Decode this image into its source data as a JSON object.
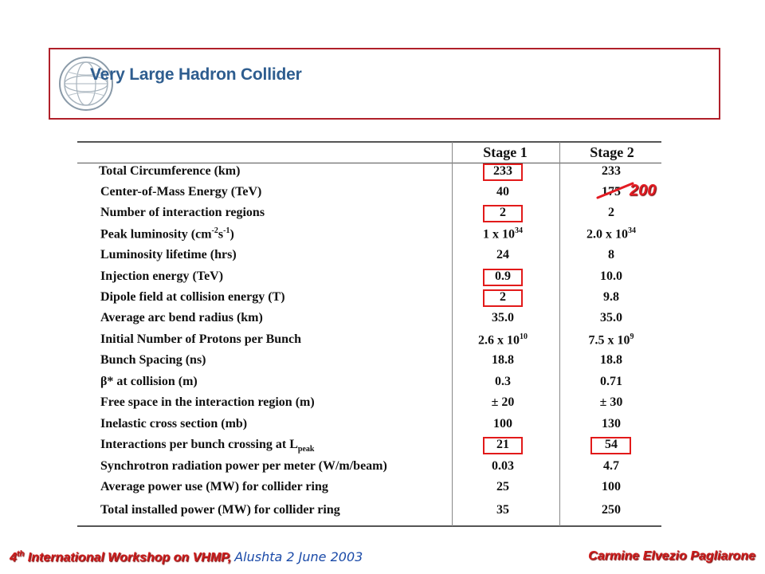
{
  "header": {
    "title": "Very Large Hadron Collider",
    "logo_icon": "globe-icon"
  },
  "table": {
    "col_stage1": "Stage 1",
    "col_stage2": "Stage 2",
    "rows": [
      {
        "param": "Total Circumference (km)",
        "s1": "233",
        "s2": "233"
      },
      {
        "param": "Center-of-Mass Energy (TeV)",
        "s1": "40",
        "s2": "175"
      },
      {
        "param": "Number of interaction regions",
        "s1": "2",
        "s2": "2"
      },
      {
        "param_pre": "Peak luminosity (cm",
        "param_sup1": "-2",
        "param_mid": "s",
        "param_sup2": "-1",
        "param_post": ")",
        "s1_pre": "1 x 10",
        "s1_sup": "34",
        "s2_pre": "2.0 x 10",
        "s2_sup": "34"
      },
      {
        "param": "Luminosity lifetime (hrs)",
        "s1": "24",
        "s2": "8"
      },
      {
        "param": "Injection energy (TeV)",
        "s1": "0.9",
        "s2": "10.0"
      },
      {
        "param": "Dipole field at collision energy (T)",
        "s1": "2",
        "s2": "9.8"
      },
      {
        "param": "Average arc bend radius (km)",
        "s1": "35.0",
        "s2": "35.0"
      },
      {
        "param": "Initial Number of Protons per Bunch",
        "s1_pre": "2.6 x 10",
        "s1_sup": "10",
        "s2_pre": "7.5 x 10",
        "s2_sup": "9"
      },
      {
        "param": "Bunch Spacing  (ns)",
        "s1": "18.8",
        "s2": "18.8"
      },
      {
        "param": "β* at collision (m)",
        "s1": "0.3",
        "s2": "0.71"
      },
      {
        "param": "Free space in the interaction region (m)",
        "s1": "±  20",
        "s2": "±  30"
      },
      {
        "param": "Inelastic cross section (mb)",
        "s1": "100",
        "s2": "130"
      },
      {
        "param_pre": "Interactions per bunch crossing at L",
        "param_sub": "peak",
        "s1": "21",
        "s2": "54"
      },
      {
        "param": "Synchrotron radiation power per meter (W/m/beam)",
        "s1": "0.03",
        "s2": "4.7"
      },
      {
        "param": "Average power use (MW) for collider ring",
        "s1": "25",
        "s2": "100"
      },
      {
        "param": "Total installed power (MW) for collider ring",
        "s1": "35",
        "s2": "250"
      }
    ],
    "correction": "200"
  },
  "footer": {
    "left_pre": "4",
    "left_sup": "th",
    "left_post": " International Workshop on VHMP,",
    "middle": "Alushta 2 June 2003",
    "right": "Carmine Elvezio Pagliarone"
  },
  "colors": {
    "highlight": "#e21a1a",
    "footer_red": "#cc1d1d",
    "footer_blue": "#1a4aa8",
    "logo_blue": "#2e5d8f",
    "frame": "#b0202a"
  }
}
